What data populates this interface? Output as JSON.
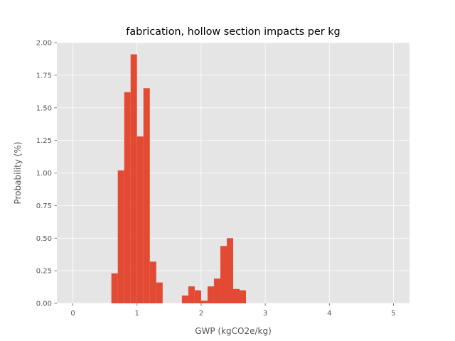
{
  "chart_data": {
    "type": "bar",
    "title": "fabrication, hollow section impacts per kg",
    "xlabel": "GWP (kgCO2e/kg)",
    "ylabel": "Probability (%)",
    "xlim": [
      -0.25,
      5.25
    ],
    "ylim": [
      0,
      2.0
    ],
    "xticks": [
      0,
      1,
      2,
      3,
      4,
      5
    ],
    "yticks": [
      0.0,
      0.25,
      0.5,
      0.75,
      1.0,
      1.25,
      1.5,
      1.75,
      2.0
    ],
    "ytick_labels": [
      "0.00",
      "0.25",
      "0.50",
      "0.75",
      "1.00",
      "1.25",
      "1.50",
      "1.75",
      "2.00"
    ],
    "grid": true,
    "background": "#e5e5e5",
    "bar_color": "#e24a33",
    "bin_width": 0.1,
    "bins": [
      {
        "x0": 0.6,
        "value": 0.23
      },
      {
        "x0": 0.7,
        "value": 1.02
      },
      {
        "x0": 0.8,
        "value": 1.62
      },
      {
        "x0": 0.9,
        "value": 1.91
      },
      {
        "x0": 1.0,
        "value": 1.28
      },
      {
        "x0": 1.1,
        "value": 1.65
      },
      {
        "x0": 1.2,
        "value": 0.32
      },
      {
        "x0": 1.3,
        "value": 0.16
      },
      {
        "x0": 1.7,
        "value": 0.06
      },
      {
        "x0": 1.8,
        "value": 0.13
      },
      {
        "x0": 1.9,
        "value": 0.1
      },
      {
        "x0": 2.0,
        "value": 0.02
      },
      {
        "x0": 2.1,
        "value": 0.13
      },
      {
        "x0": 2.2,
        "value": 0.19
      },
      {
        "x0": 2.3,
        "value": 0.44
      },
      {
        "x0": 2.4,
        "value": 0.5
      },
      {
        "x0": 2.5,
        "value": 0.11
      },
      {
        "x0": 2.6,
        "value": 0.1
      }
    ]
  }
}
